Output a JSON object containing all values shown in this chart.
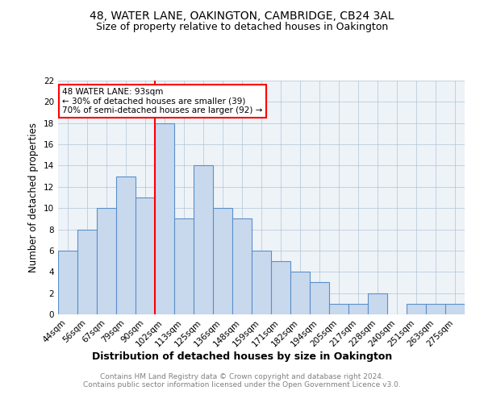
{
  "title": "48, WATER LANE, OAKINGTON, CAMBRIDGE, CB24 3AL",
  "subtitle": "Size of property relative to detached houses in Oakington",
  "xlabel": "Distribution of detached houses by size in Oakington",
  "ylabel": "Number of detached properties",
  "footer": "Contains HM Land Registry data © Crown copyright and database right 2024.\nContains public sector information licensed under the Open Government Licence v3.0.",
  "categories": [
    "44sqm",
    "56sqm",
    "67sqm",
    "79sqm",
    "90sqm",
    "102sqm",
    "113sqm",
    "125sqm",
    "136sqm",
    "148sqm",
    "159sqm",
    "171sqm",
    "182sqm",
    "194sqm",
    "205sqm",
    "217sqm",
    "228sqm",
    "240sqm",
    "251sqm",
    "263sqm",
    "275sqm"
  ],
  "values": [
    6,
    8,
    10,
    13,
    11,
    18,
    9,
    14,
    10,
    9,
    6,
    5,
    4,
    3,
    1,
    1,
    2,
    0,
    1,
    1,
    1
  ],
  "bar_color": "#c9d9ed",
  "bar_edge_color": "#5b8fc9",
  "bar_linewidth": 0.8,
  "grid_color": "#b0c4d8",
  "bg_color": "#eef3f8",
  "red_line_x": 4.5,
  "annotation_text": "48 WATER LANE: 93sqm\n← 30% of detached houses are smaller (39)\n70% of semi-detached houses are larger (92) →",
  "annotation_box_color": "white",
  "annotation_box_edge": "red",
  "ylim": [
    0,
    22
  ],
  "yticks": [
    0,
    2,
    4,
    6,
    8,
    10,
    12,
    14,
    16,
    18,
    20,
    22
  ],
  "title_fontsize": 10,
  "subtitle_fontsize": 9,
  "xlabel_fontsize": 9,
  "ylabel_fontsize": 8.5,
  "tick_fontsize": 7.5,
  "footer_fontsize": 6.5,
  "annotation_fontsize": 7.5
}
